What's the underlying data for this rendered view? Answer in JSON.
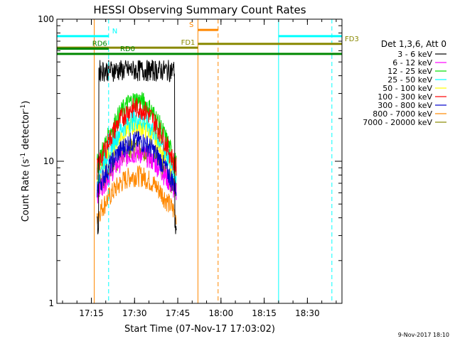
{
  "chart_data": {
    "type": "line",
    "title": "HESSI Observing Summary Count Rates",
    "xlabel": "Start Time (07-Nov-17 17:03:02)",
    "ylabel_main": "Count Rate (s",
    "ylabel_sup1": "-1",
    "ylabel_mid": " detector",
    "ylabel_sup2": "-1",
    "ylabel_end": ")",
    "yscale": "log",
    "ylim": [
      1,
      100
    ],
    "xlim": [
      "17:03:02",
      "18:42:00"
    ],
    "x_ticks": [
      "17:15",
      "17:30",
      "17:45",
      "18:00",
      "18:15",
      "18:30"
    ],
    "y_ticks": [
      "1",
      "10",
      "100"
    ],
    "legend_header": "Det 1,3,6, Att 0",
    "legend_placement": "right",
    "footer_date": "9-Nov-2017 18:10",
    "data_start": "17:17:00",
    "data_end": "17:44:30",
    "series": [
      {
        "name": "3 - 6 keV",
        "color": "#000000",
        "start": 3.1,
        "peak": 44,
        "end": 3.1
      },
      {
        "name": "6 - 12 keV",
        "color": "#ff00ff",
        "start": 6.0,
        "peak": 11.5,
        "end": 6.0
      },
      {
        "name": "12 - 25 keV",
        "color": "#00dd00",
        "start": 9.5,
        "peak": 27,
        "end": 9.5
      },
      {
        "name": "25 - 50 keV",
        "color": "#00ffff",
        "start": 8.0,
        "peak": 20,
        "end": 8.0
      },
      {
        "name": "50 - 100 keV",
        "color": "#ffff00",
        "start": 7.5,
        "peak": 18,
        "end": 7.5
      },
      {
        "name": "100 - 300 keV",
        "color": "#ff0000",
        "start": 9.0,
        "peak": 24,
        "end": 9.0
      },
      {
        "name": "300 - 800 keV",
        "color": "#0000cc",
        "start": 6.5,
        "peak": 14,
        "end": 6.5
      },
      {
        "name": "800 - 7000 keV",
        "color": "#ff8800",
        "start": 4.2,
        "peak": 8.0,
        "end": 4.2
      },
      {
        "name": "7000 - 20000 keV",
        "color": "#888800",
        "start": 6.2,
        "peak": 12.5,
        "end": 6.2
      }
    ],
    "flag_bars": [
      {
        "label": "N",
        "color": "#00ffff",
        "segments": [
          [
            "17:03:02",
            "17:21:00"
          ],
          [
            "18:20:00",
            "18:42:00"
          ]
        ],
        "level": 76
      },
      {
        "label": "S",
        "color": "#ff8800",
        "segments": [
          [
            "17:52:00",
            "17:59:00"
          ]
        ],
        "level": 84
      },
      {
        "label": "FD1",
        "color": "#888800",
        "segments": [
          [
            "17:03:02",
            "17:52:00"
          ]
        ],
        "level": 63
      },
      {
        "label": "FD3",
        "color": "#888800",
        "segments": [
          [
            "17:52:00",
            "18:42:00"
          ]
        ],
        "level": 67
      },
      {
        "label": "RD0",
        "color": "#008800",
        "segments": [
          [
            "17:03:02",
            "18:42:00"
          ]
        ],
        "level": 57
      },
      {
        "label": "RD6",
        "color": "#008800",
        "segments": [
          [
            "17:03:02",
            "17:21:00"
          ]
        ],
        "level": 62
      }
    ],
    "vlines": [
      {
        "time": "17:21:00",
        "color": "#00ffff",
        "style": "dashed"
      },
      {
        "time": "17:16:00",
        "color": "#ff8800",
        "style": "solid"
      },
      {
        "time": "17:52:00",
        "color": "#ff8800",
        "style": "solid"
      },
      {
        "time": "17:59:00",
        "color": "#ff8800",
        "style": "dashed"
      },
      {
        "time": "18:20:00",
        "color": "#00ffff",
        "style": "solid"
      },
      {
        "time": "18:38:30",
        "color": "#00ffff",
        "style": "dashed"
      },
      {
        "time": "17:03:02",
        "color": "#00ffff",
        "style": "solid"
      }
    ]
  }
}
